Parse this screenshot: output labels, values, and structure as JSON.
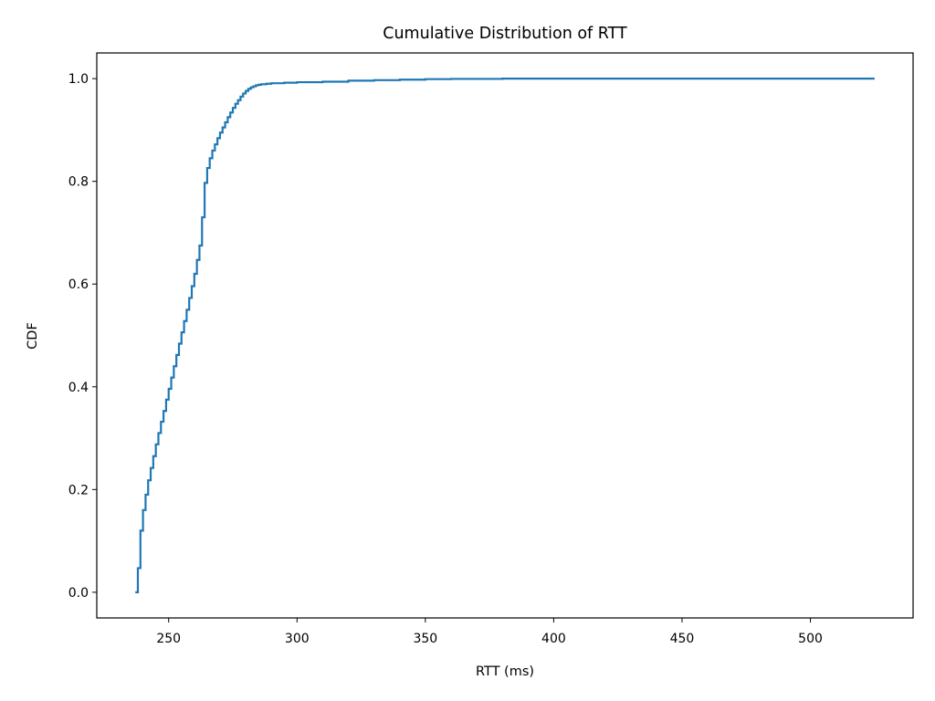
{
  "chart_data": {
    "type": "line",
    "title": "Cumulative Distribution of RTT",
    "xlabel": "RTT (ms)",
    "ylabel": "CDF",
    "xlim": [
      222,
      540
    ],
    "ylim": [
      -0.05,
      1.05
    ],
    "xticks": [
      250,
      300,
      350,
      400,
      450,
      500
    ],
    "xtick_labels": [
      "250",
      "300",
      "350",
      "400",
      "450",
      "500"
    ],
    "yticks": [
      0.0,
      0.2,
      0.4,
      0.6,
      0.8,
      1.0
    ],
    "ytick_labels": [
      "0.0",
      "0.2",
      "0.4",
      "0.6",
      "0.8",
      "1.0"
    ],
    "grid": false,
    "line_color": "#1f77b4",
    "series": [
      {
        "step": "post",
        "x": [
          237,
          238,
          239,
          240,
          241,
          242,
          243,
          244,
          245,
          246,
          247,
          248,
          249,
          250,
          251,
          252,
          253,
          254,
          255,
          256,
          257,
          258,
          259,
          260,
          261,
          262,
          263,
          264,
          265,
          266,
          267,
          268,
          269,
          270,
          271,
          272,
          273,
          274,
          275,
          276,
          277,
          278,
          279,
          280,
          281,
          282,
          283,
          284,
          285,
          286,
          288,
          290,
          292,
          295,
          300,
          305,
          310,
          320,
          330,
          340,
          350,
          360,
          380,
          400,
          450,
          500,
          525
        ],
        "y": [
          0.0,
          0.047,
          0.12,
          0.16,
          0.19,
          0.218,
          0.242,
          0.265,
          0.288,
          0.31,
          0.332,
          0.353,
          0.375,
          0.396,
          0.418,
          0.44,
          0.462,
          0.484,
          0.506,
          0.528,
          0.55,
          0.573,
          0.596,
          0.62,
          0.647,
          0.675,
          0.73,
          0.797,
          0.826,
          0.845,
          0.86,
          0.872,
          0.884,
          0.895,
          0.905,
          0.915,
          0.925,
          0.934,
          0.943,
          0.951,
          0.958,
          0.965,
          0.971,
          0.976,
          0.98,
          0.983,
          0.985,
          0.987,
          0.988,
          0.989,
          0.99,
          0.991,
          0.991,
          0.992,
          0.993,
          0.993,
          0.994,
          0.996,
          0.997,
          0.998,
          0.999,
          0.9995,
          1.0,
          1.0,
          1.0,
          1.0,
          1.0
        ]
      }
    ]
  }
}
